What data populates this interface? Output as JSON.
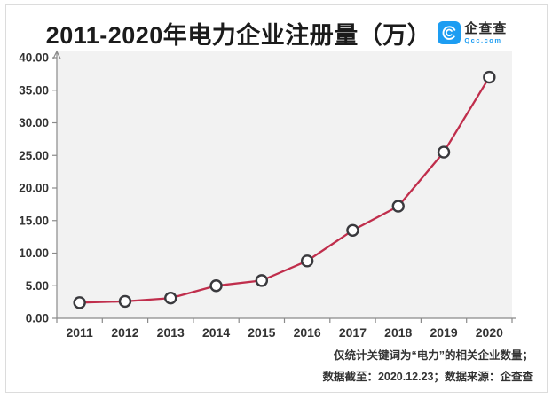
{
  "header": {
    "title": "2011-2020年电力企业注册量（万）",
    "logo": {
      "brand": "企查查",
      "domain": "Qcc.com",
      "icon_color": "#1d9df2"
    }
  },
  "chart_data": {
    "type": "line",
    "title": "2011-2020年电力企业注册量（万）",
    "categories": [
      "2011",
      "2012",
      "2013",
      "2014",
      "2015",
      "2016",
      "2017",
      "2018",
      "2019",
      "2020"
    ],
    "series": [
      {
        "name": "电力企业注册量（万）",
        "values": [
          2.4,
          2.6,
          3.1,
          5.0,
          5.8,
          8.8,
          13.5,
          17.2,
          25.5,
          37.0
        ]
      }
    ],
    "xlabel": "",
    "ylabel": "",
    "ylim": [
      0,
      40
    ],
    "ytick_step": 5,
    "ytick_labels": [
      "0.00",
      "5.00",
      "10.00",
      "15.00",
      "20.00",
      "25.00",
      "30.00",
      "35.00",
      "40.00"
    ],
    "grid": false,
    "legend_position": "none",
    "colors": {
      "line": "#c02e4c",
      "marker_fill": "#ffffff",
      "marker_stroke": "#3a3a3e",
      "plot_bg": "#f2f2f2",
      "axis": "#8a8a8a",
      "tick_label": "#333333"
    }
  },
  "footer": {
    "note_line1": "仅统计关键词为“电力”的相关企业数量；",
    "note_line2": "数据截至：2020.12.23；数据来源：企查查"
  }
}
